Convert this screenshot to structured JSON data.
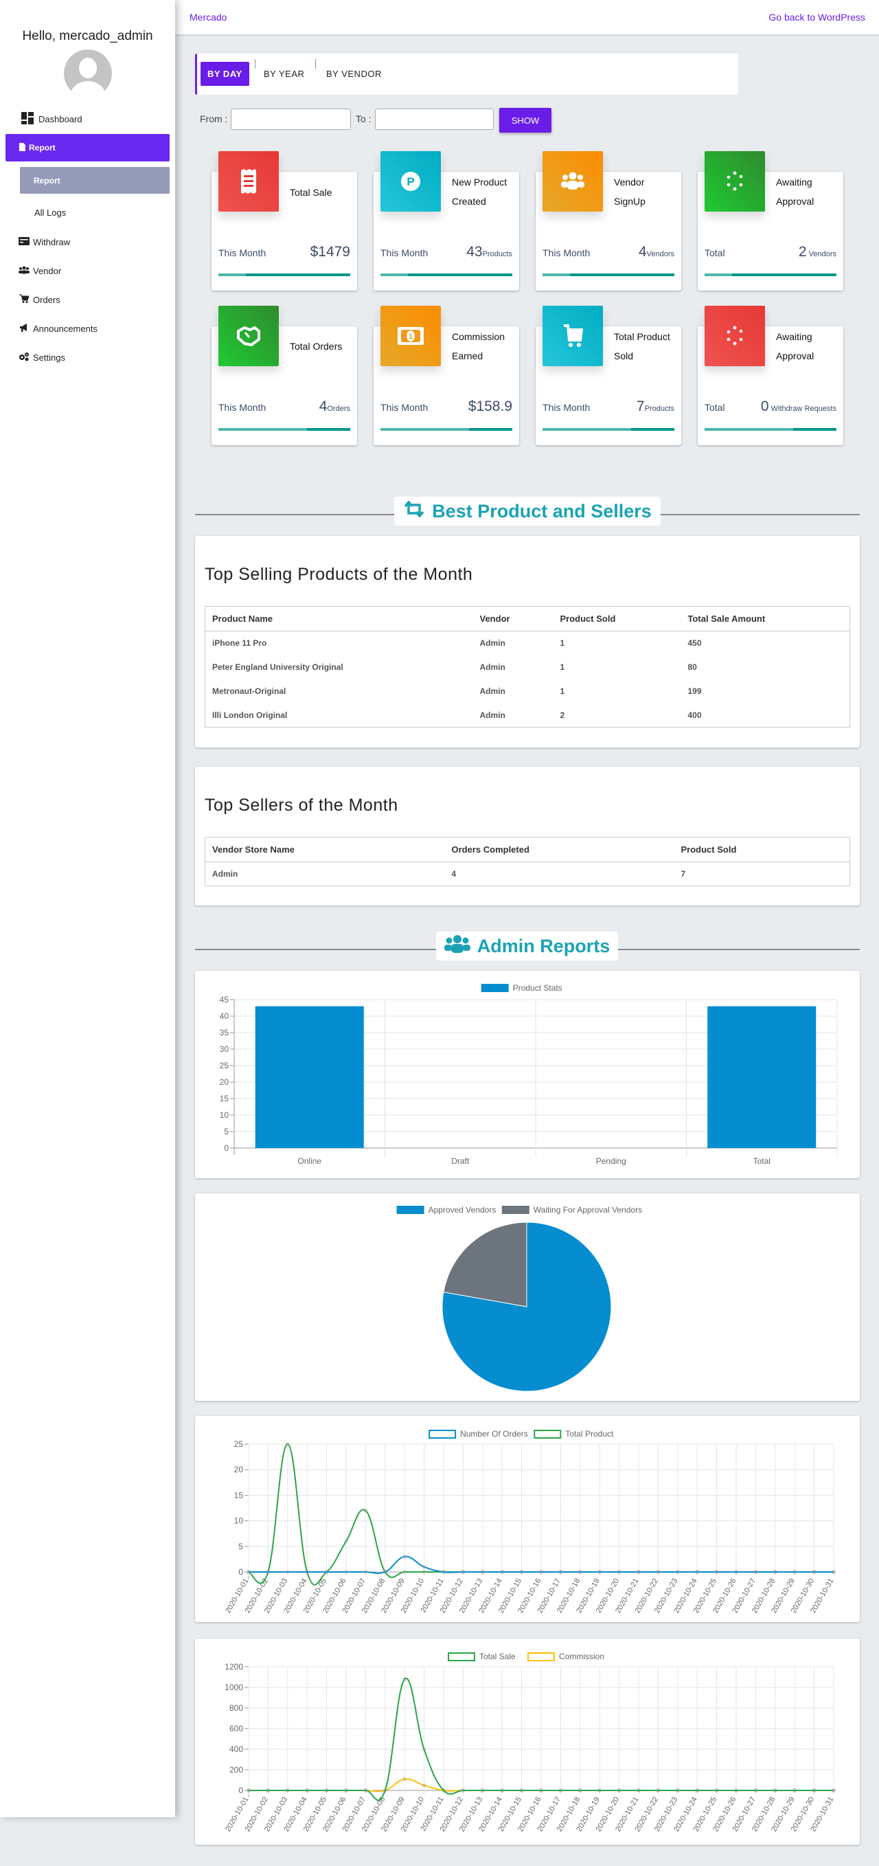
{
  "topbar": {
    "brand": "Mercado",
    "back_link": "Go back to WordPress"
  },
  "sidebar": {
    "greeting": "Hello, mercado_admin",
    "items": [
      {
        "label": "Dashboard",
        "icon": "dashboard-icon"
      },
      {
        "label": "Report",
        "icon": "file-icon",
        "active": true
      },
      {
        "label": "Report",
        "sub": true,
        "active": true
      },
      {
        "label": "All Logs",
        "sub": true
      },
      {
        "label": "Withdraw",
        "icon": "money-check-icon"
      },
      {
        "label": "Vendor",
        "icon": "users-icon"
      },
      {
        "label": "Orders",
        "icon": "cart-icon"
      },
      {
        "label": "Announcements",
        "icon": "megaphone-icon"
      },
      {
        "label": "Settings",
        "icon": "gears-icon"
      }
    ]
  },
  "filters": {
    "tabs": [
      {
        "label": "BY DAY",
        "active": true
      },
      {
        "label": "BY YEAR"
      },
      {
        "label": "BY VENDOR"
      }
    ],
    "from_label": "From :",
    "from_value": "",
    "to_label": "To :",
    "to_value": "",
    "show_label": "SHOW"
  },
  "stats": [
    {
      "title": "Total Sale",
      "period": "This Month",
      "value": "$1479",
      "unit": "",
      "icon": "receipt-icon",
      "color": [
        "#ef5350",
        "#e53935"
      ],
      "progress": 21
    },
    {
      "title": "New Product Created",
      "period": "This Month",
      "value": "43",
      "unit": "Products",
      "icon": "product-p-icon",
      "color": [
        "#26c6da",
        "#00acc1"
      ],
      "progress": 21
    },
    {
      "title": "Vendor SignUp",
      "period": "This Month",
      "value": "4",
      "unit": "Vendors",
      "icon": "users-icon",
      "color": [
        "#e6a82a",
        "#fb8c00"
      ],
      "progress": 21
    },
    {
      "title": "Awaiting Approval",
      "period": "Total",
      "value": "2",
      "unit": " Vendors",
      "icon": "spinner-icon",
      "color": [
        "#20c933",
        "#2e8b2e"
      ],
      "progress": 21
    },
    {
      "title": "Total Orders",
      "period": "This Month",
      "value": "4",
      "unit": "Orders",
      "icon": "handshake-icon",
      "color": [
        "#20c933",
        "#2e8b2e"
      ],
      "progress": 67
    },
    {
      "title": "Commission Earned",
      "period": "This Month",
      "value": "$158.9",
      "unit": "",
      "icon": "money-bill-icon",
      "color": [
        "#e6a82a",
        "#fb8c00"
      ],
      "progress": 67
    },
    {
      "title": "Total Product Sold",
      "period": "This Month",
      "value": "7",
      "unit": "Products",
      "icon": "cart-icon",
      "color": [
        "#26c6da",
        "#00acc1"
      ],
      "progress": 67
    },
    {
      "title": "Awaiting Approval",
      "period": "Total",
      "value": "0",
      "unit": " Withdraw Requests",
      "icon": "spinner-icon",
      "color": [
        "#ef5350",
        "#e53935"
      ],
      "progress": 67
    }
  ],
  "best_section": {
    "title": "Best Product and Sellers",
    "icon": "retweet-icon"
  },
  "top_products": {
    "title": "Top Selling Products of the Month",
    "columns": [
      "Product Name",
      "Vendor",
      "Product Sold",
      "Total Sale Amount"
    ],
    "rows": [
      [
        "iPhone 11 Pro",
        "Admin",
        "1",
        "450"
      ],
      [
        "Peter England University Original",
        "Admin",
        "1",
        "80"
      ],
      [
        "Metronaut-Original",
        "Admin",
        "1",
        "199"
      ],
      [
        "Illi London Original",
        "Admin",
        "2",
        "400"
      ]
    ]
  },
  "top_sellers": {
    "title": "Top Sellers of the Month",
    "columns": [
      "Vendor Store Name",
      "Orders Completed",
      "Product Sold"
    ],
    "rows": [
      [
        "Admin",
        "4",
        "7"
      ]
    ]
  },
  "reports_section": {
    "title": "Admin Reports",
    "icon": "users-icon"
  },
  "chart_data": [
    {
      "type": "bar",
      "categories": [
        "Online",
        "Draft",
        "Pending",
        "Total"
      ],
      "series": [
        {
          "name": "Product Stats",
          "values": [
            43,
            0,
            0,
            43
          ],
          "color": "#058dd0"
        }
      ],
      "ylim": [
        0,
        45
      ],
      "yticks": [
        0,
        5,
        10,
        15,
        20,
        25,
        30,
        35,
        40,
        45
      ],
      "legend": "top",
      "grid": true
    },
    {
      "type": "pie",
      "labels": [
        "Approved Vendors",
        "Waiting For Approval Vendors"
      ],
      "values": [
        7,
        2
      ],
      "colors": [
        "#058dd0",
        "#6c757d"
      ],
      "legend": "top"
    },
    {
      "type": "line",
      "x": [
        "2020-10-01",
        "2020-10-02",
        "2020-10-03",
        "2020-10-04",
        "2020-10-05",
        "2020-10-06",
        "2020-10-07",
        "2020-10-08",
        "2020-10-09",
        "2020-10-10",
        "2020-10-11",
        "2020-10-12",
        "2020-10-13",
        "2020-10-14",
        "2020-10-15",
        "2020-10-16",
        "2020-10-17",
        "2020-10-18",
        "2020-10-19",
        "2020-10-20",
        "2020-10-21",
        "2020-10-22",
        "2020-10-23",
        "2020-10-24",
        "2020-10-25",
        "2020-10-26",
        "2020-10-27",
        "2020-10-28",
        "2020-10-29",
        "2020-10-30",
        "2020-10-31"
      ],
      "series": [
        {
          "name": "Number Of Orders",
          "color": "#058dd0",
          "values": [
            0,
            0,
            0,
            0,
            0,
            0,
            0,
            0,
            3,
            1,
            0,
            0,
            0,
            0,
            0,
            0,
            0,
            0,
            0,
            0,
            0,
            0,
            0,
            0,
            0,
            0,
            0,
            0,
            0,
            0,
            0
          ]
        },
        {
          "name": "Total Product",
          "color": "#28a745",
          "values": [
            0,
            0,
            25,
            0,
            0,
            6,
            12,
            0,
            0,
            0,
            0,
            0,
            0,
            0,
            0,
            0,
            0,
            0,
            0,
            0,
            0,
            0,
            0,
            0,
            0,
            0,
            0,
            0,
            0,
            0,
            0
          ]
        }
      ],
      "ylim": [
        0,
        25
      ],
      "yticks": [
        0,
        5,
        10,
        15,
        20,
        25
      ],
      "legend": "top",
      "grid": true
    },
    {
      "type": "line",
      "x": [
        "2020-10-01",
        "2020-10-02",
        "2020-10-03",
        "2020-10-04",
        "2020-10-05",
        "2020-10-06",
        "2020-10-07",
        "2020-10-08",
        "2020-10-09",
        "2020-10-10",
        "2020-10-11",
        "2020-10-12",
        "2020-10-13",
        "2020-10-14",
        "2020-10-15",
        "2020-10-16",
        "2020-10-17",
        "2020-10-18",
        "2020-10-19",
        "2020-10-20",
        "2020-10-21",
        "2020-10-22",
        "2020-10-23",
        "2020-10-24",
        "2020-10-25",
        "2020-10-26",
        "2020-10-27",
        "2020-10-28",
        "2020-10-29",
        "2020-10-30",
        "2020-10-31"
      ],
      "series": [
        {
          "name": "Total Sale",
          "color": "#28a745",
          "values": [
            0,
            0,
            0,
            0,
            0,
            0,
            0,
            0,
            1080,
            399,
            0,
            0,
            0,
            0,
            0,
            0,
            0,
            0,
            0,
            0,
            0,
            0,
            0,
            0,
            0,
            0,
            0,
            0,
            0,
            0,
            0
          ]
        },
        {
          "name": "Commission",
          "color": "#ffc107",
          "values": [
            0,
            0,
            0,
            0,
            0,
            0,
            0,
            0,
            110,
            48.9,
            0,
            0,
            0,
            0,
            0,
            0,
            0,
            0,
            0,
            0,
            0,
            0,
            0,
            0,
            0,
            0,
            0,
            0,
            0,
            0,
            0
          ]
        }
      ],
      "ylim": [
        0,
        1200
      ],
      "yticks": [
        0,
        200,
        400,
        600,
        800,
        1000,
        1200
      ],
      "legend": "top",
      "grid": true
    }
  ]
}
